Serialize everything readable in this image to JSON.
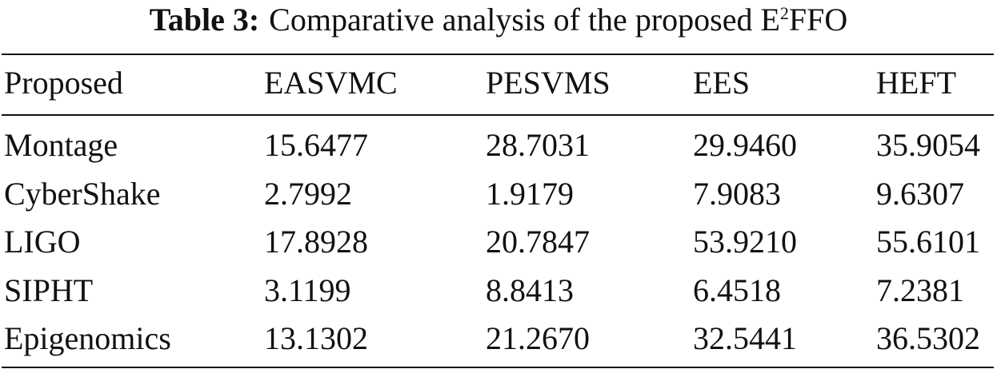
{
  "table": {
    "label": "Table 3:",
    "caption": {
      "text": "Comparative analysis of the proposed E",
      "superscript": "2",
      "suffix": "FFO"
    },
    "header": [
      "Proposed",
      "EASVMC",
      "PESVMS",
      "EES",
      "HEFT"
    ],
    "rows": [
      [
        "Montage",
        "15.6477",
        "28.7031",
        "29.9460",
        "35.9054"
      ],
      [
        "CyberShake",
        "2.7992",
        "1.9179",
        "7.9083",
        "9.6307"
      ],
      [
        "LIGO",
        "17.8928",
        "20.7847",
        "53.9210",
        "55.6101"
      ],
      [
        "SIPHT",
        "3.1199",
        "8.8413",
        "6.4518",
        "7.2381"
      ],
      [
        "Epigenomics",
        "13.1302",
        "21.2670",
        "32.5441",
        "36.5302"
      ]
    ]
  }
}
